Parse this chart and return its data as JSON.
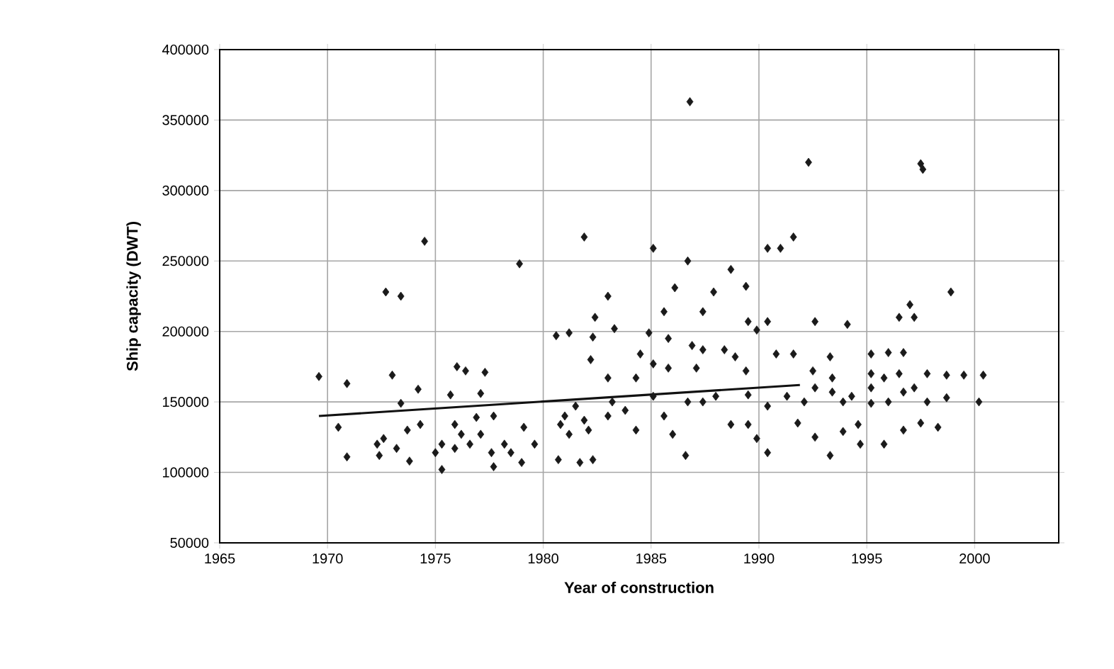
{
  "chart_data": {
    "type": "scatter",
    "xlabel": "Year of construction",
    "ylabel": "Ship capacity (DWT)",
    "xlim": [
      1965,
      2003.9
    ],
    "ylim": [
      50000,
      400000
    ],
    "xticks": [
      1965,
      1970,
      1975,
      1980,
      1985,
      1990,
      1995,
      2000
    ],
    "yticks": [
      50000,
      100000,
      150000,
      200000,
      250000,
      300000,
      350000,
      400000
    ],
    "grid": true,
    "series": [
      {
        "marker": "diamond",
        "color": "#1a1a1a",
        "x": [
          1969.6,
          1970.9,
          1970.5,
          1970.9,
          1972.7,
          1973.4,
          1973.0,
          1974.2,
          1973.4,
          1973.7,
          1974.3,
          1972.6,
          1972.3,
          1972.4,
          1973.2,
          1973.8,
          1974.5,
          1978.9,
          1981.9,
          1976.0,
          1976.4,
          1977.3,
          1975.7,
          1977.1,
          1977.7,
          1976.9,
          1975.3,
          1975.0,
          1975.3,
          1975.9,
          1976.2,
          1976.6,
          1977.1,
          1977.6,
          1977.7,
          1978.2,
          1979.1,
          1979.0,
          1979.6,
          1978.5,
          1975.9,
          1980.7,
          1980.6,
          1981.2,
          1982.4,
          1983.0,
          1983.3,
          1982.3,
          1982.2,
          1983.0,
          1981.0,
          1981.5,
          1981.9,
          1981.2,
          1982.1,
          1981.7,
          1982.3,
          1983.0,
          1983.2,
          1980.8,
          1985.1,
          1986.7,
          1988.7,
          1986.1,
          1987.9,
          1989.4,
          1985.6,
          1987.4,
          1989.5,
          1990.4,
          1989.9,
          1992.6,
          1994.1,
          1996.5,
          1997.0,
          1997.2,
          1998.9,
          1984.9,
          1985.8,
          1986.9,
          1987.4,
          1988.4,
          1984.5,
          1985.1,
          1985.8,
          1987.1,
          1984.3,
          1988.9,
          1989.4,
          1990.8,
          1991.6,
          1992.5,
          1993.3,
          1995.2,
          1996.0,
          1996.7,
          1984.3,
          1986.0,
          1986.6,
          1985.6,
          1987.4,
          1988.7,
          1989.5,
          1989.9,
          1990.4,
          1989.5,
          1990.4,
          1991.8,
          1992.6,
          1993.3,
          1993.9,
          1994.6,
          1994.7,
          1995.8,
          1996.7,
          1998.3,
          1998.7,
          2000.2,
          2000.4,
          1999.5,
          1998.7,
          1997.8,
          1992.6,
          1993.4,
          1994.3,
          1995.2,
          1995.8,
          1996.5,
          1997.2,
          1996.0,
          1995.2,
          1993.9,
          1992.1,
          1997.8,
          1996.7,
          1993.4,
          1995.2,
          1991.3,
          1988.0,
          1986.7,
          1985.1,
          1983.8,
          1997.5,
          1986.8,
          1992.3,
          1997.5,
          1997.6,
          1990.4,
          1991.0,
          1991.6
        ],
        "values": [
          168000,
          163000,
          132000,
          111000,
          228000,
          225000,
          169000,
          159000,
          149000,
          130000,
          134000,
          124000,
          120000,
          112000,
          117000,
          108000,
          264000,
          248000,
          267000,
          175000,
          172000,
          171000,
          155000,
          156000,
          140000,
          139000,
          120000,
          114000,
          102000,
          117000,
          127000,
          120000,
          127000,
          114000,
          104000,
          120000,
          132000,
          107000,
          120000,
          114000,
          134000,
          109000,
          197000,
          199000,
          210000,
          225000,
          202000,
          196000,
          180000,
          167000,
          140000,
          147000,
          137000,
          127000,
          130000,
          107000,
          109000,
          140000,
          150000,
          134000,
          259000,
          250000,
          244000,
          231000,
          228000,
          232000,
          214000,
          214000,
          207000,
          207000,
          201000,
          207000,
          205000,
          210000,
          219000,
          210000,
          228000,
          199000,
          195000,
          190000,
          187000,
          187000,
          184000,
          177000,
          174000,
          174000,
          167000,
          182000,
          172000,
          184000,
          184000,
          172000,
          182000,
          184000,
          185000,
          185000,
          130000,
          127000,
          112000,
          140000,
          150000,
          134000,
          134000,
          124000,
          114000,
          155000,
          147000,
          135000,
          125000,
          112000,
          129000,
          134000,
          120000,
          120000,
          130000,
          132000,
          153000,
          150000,
          169000,
          169000,
          169000,
          170000,
          160000,
          157000,
          154000,
          160000,
          167000,
          170000,
          160000,
          150000,
          149000,
          150000,
          150000,
          150000,
          157000,
          167000,
          170000,
          154000,
          154000,
          150000,
          154000,
          144000,
          135000,
          363000,
          320000,
          319000,
          315000,
          259000,
          259000,
          267000
        ]
      },
      {
        "type": "line",
        "color": "#111111",
        "x": [
          1969.6,
          1991.9
        ],
        "values": [
          140000,
          162000
        ]
      }
    ]
  }
}
